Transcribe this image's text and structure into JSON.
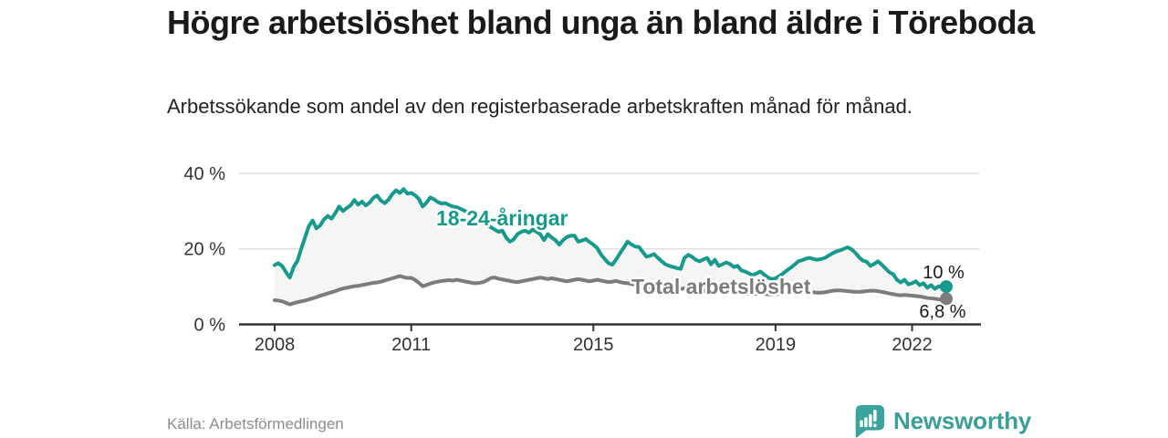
{
  "title": "Högre arbetslöshet bland unga än bland äldre i Töreboda",
  "subtitle": "Arbetssökande som andel av den registerbaserade arbetskraften månad för månad.",
  "source": "Källa: Arbetsförmedlingen",
  "branding": {
    "name": "Newsworthy",
    "icon": "bar-chart-speech-bubble-icon",
    "color": "#3b9e97"
  },
  "colors": {
    "youth_line": "#17998b",
    "total_line": "#7c7c7c",
    "between_area": "#f5f5f4",
    "grid": "#e0e0e0",
    "axis": "#333333",
    "title_text": "#1a1a1a",
    "body_text": "#222222",
    "source_text": "#8c8c8c"
  },
  "chart_data": {
    "type": "line",
    "title": "Högre arbetslöshet bland unga än bland äldre i Töreboda",
    "subtitle": "Arbetssökande som andel av den registerbaserade arbetskraften månad för månad.",
    "x_unit": "month",
    "x_start": "2008-01",
    "x_end": "2022-10",
    "ylim": [
      0,
      40
    ],
    "grid": true,
    "legend_position": "inline-labels",
    "y_ticks": [
      {
        "label": "0 %",
        "value": 0
      },
      {
        "label": "20 %",
        "value": 20
      },
      {
        "label": "40 %",
        "value": 40
      }
    ],
    "x_ticks": [
      {
        "label": "2008",
        "year": 2008
      },
      {
        "label": "2011",
        "year": 2011
      },
      {
        "label": "2015",
        "year": 2015
      },
      {
        "label": "2019",
        "year": 2019
      },
      {
        "label": "2022",
        "year": 2022
      }
    ],
    "series": [
      {
        "name": "18-24-åringar",
        "color": "#17998b",
        "end_label": "10 %",
        "end_value": 10.0,
        "values": [
          15.7,
          16.2,
          15.4,
          13.8,
          12.4,
          15.2,
          16.8,
          20.0,
          23.0,
          26.0,
          27.5,
          25.4,
          26.2,
          27.8,
          28.7,
          28.0,
          29.5,
          31.2,
          30.0,
          30.8,
          31.5,
          32.9,
          31.7,
          32.5,
          31.5,
          32.2,
          33.5,
          34.1,
          32.8,
          32.1,
          33.0,
          34.5,
          35.5,
          34.8,
          35.8,
          34.6,
          34.8,
          34.2,
          33.2,
          31.2,
          32.2,
          33.6,
          33.1,
          32.4,
          32.0,
          32.1,
          31.6,
          31.2,
          31.0,
          30.6,
          30.1,
          29.6,
          29.0,
          28.3,
          27.6,
          27.0,
          26.3,
          25.7,
          25.1,
          24.5,
          24.8,
          23.0,
          21.9,
          22.5,
          23.9,
          24.5,
          24.8,
          24.3,
          25.1,
          24.5,
          23.9,
          22.3,
          23.9,
          23.0,
          22.3,
          21.1,
          22.3,
          23.1,
          23.5,
          23.5,
          21.9,
          22.2,
          22.6,
          21.8,
          21.1,
          20.2,
          18.5,
          17.3,
          16.2,
          15.8,
          17.2,
          18.8,
          20.3,
          21.9,
          21.2,
          20.6,
          20.5,
          19.2,
          17.9,
          18.2,
          18.6,
          17.6,
          16.7,
          15.9,
          15.5,
          15.2,
          14.9,
          14.7,
          17.6,
          18.4,
          17.9,
          17.1,
          16.7,
          17.2,
          17.6,
          15.9,
          17.1,
          15.5,
          15.9,
          16.4,
          16.0,
          15.2,
          15.5,
          14.3,
          14.0,
          13.5,
          13.0,
          13.5,
          14.0,
          13.2,
          12.4,
          12.0,
          12.2,
          12.8,
          13.5,
          14.3,
          15.0,
          15.8,
          16.7,
          17.0,
          17.4,
          17.6,
          17.3,
          17.1,
          17.3,
          17.6,
          18.2,
          18.8,
          19.3,
          19.6,
          20.0,
          20.4,
          19.9,
          19.0,
          17.8,
          16.9,
          16.6,
          15.5,
          16.0,
          16.7,
          15.8,
          14.8,
          13.8,
          13.3,
          11.8,
          11.1,
          11.8,
          10.6,
          10.9,
          11.4,
          10.4,
          10.9,
          9.7,
          10.4,
          9.4,
          10.1,
          9.8,
          10.0
        ]
      },
      {
        "name": "Total arbetslöshet",
        "color": "#7c7c7c",
        "end_label": "6,8 %",
        "end_value": 6.8,
        "values": [
          6.4,
          6.3,
          6.1,
          5.7,
          5.3,
          5.6,
          5.9,
          6.1,
          6.3,
          6.6,
          6.9,
          7.2,
          7.6,
          7.9,
          8.2,
          8.5,
          8.8,
          9.2,
          9.5,
          9.7,
          9.9,
          10.1,
          10.2,
          10.4,
          10.6,
          10.8,
          11.0,
          11.1,
          11.3,
          11.6,
          11.9,
          12.2,
          12.5,
          12.8,
          12.5,
          12.3,
          12.3,
          11.8,
          11.0,
          10.1,
          10.4,
          10.8,
          11.1,
          11.3,
          11.5,
          11.6,
          11.7,
          11.6,
          11.8,
          11.6,
          11.4,
          11.2,
          11.0,
          10.9,
          11.0,
          11.2,
          11.7,
          12.3,
          12.4,
          12.1,
          11.9,
          11.7,
          11.5,
          11.3,
          11.2,
          11.4,
          11.6,
          11.8,
          12.0,
          12.2,
          12.4,
          12.2,
          12.0,
          12.2,
          12.0,
          11.8,
          11.6,
          11.4,
          11.6,
          11.8,
          12.0,
          11.8,
          11.6,
          11.4,
          11.6,
          11.8,
          11.6,
          11.4,
          11.2,
          11.3,
          11.5,
          11.2,
          11.0,
          10.9,
          10.7,
          10.5,
          10.4,
          10.3,
          10.1,
          10.0,
          9.8,
          9.7,
          9.8,
          10.0,
          9.9,
          9.7,
          9.5,
          9.4,
          9.5,
          9.4,
          9.2,
          9.1,
          9.0,
          8.9,
          9.0,
          9.1,
          9.0,
          8.9,
          8.8,
          8.7,
          8.6,
          8.5,
          8.4,
          8.3,
          8.2,
          8.1,
          8.0,
          8.1,
          8.2,
          8.1,
          8.0,
          7.9,
          8.0,
          8.1,
          8.2,
          8.3,
          8.4,
          8.5,
          8.5,
          8.6,
          8.6,
          8.5,
          8.5,
          8.4,
          8.4,
          8.5,
          8.7,
          8.9,
          9.0,
          9.0,
          8.9,
          8.8,
          8.7,
          8.6,
          8.6,
          8.7,
          8.8,
          8.9,
          8.9,
          8.8,
          8.6,
          8.4,
          8.2,
          8.0,
          7.8,
          7.7,
          7.8,
          7.7,
          7.6,
          7.5,
          7.4,
          7.2,
          7.0,
          6.9,
          6.8,
          6.6,
          6.5,
          6.8
        ]
      }
    ]
  }
}
